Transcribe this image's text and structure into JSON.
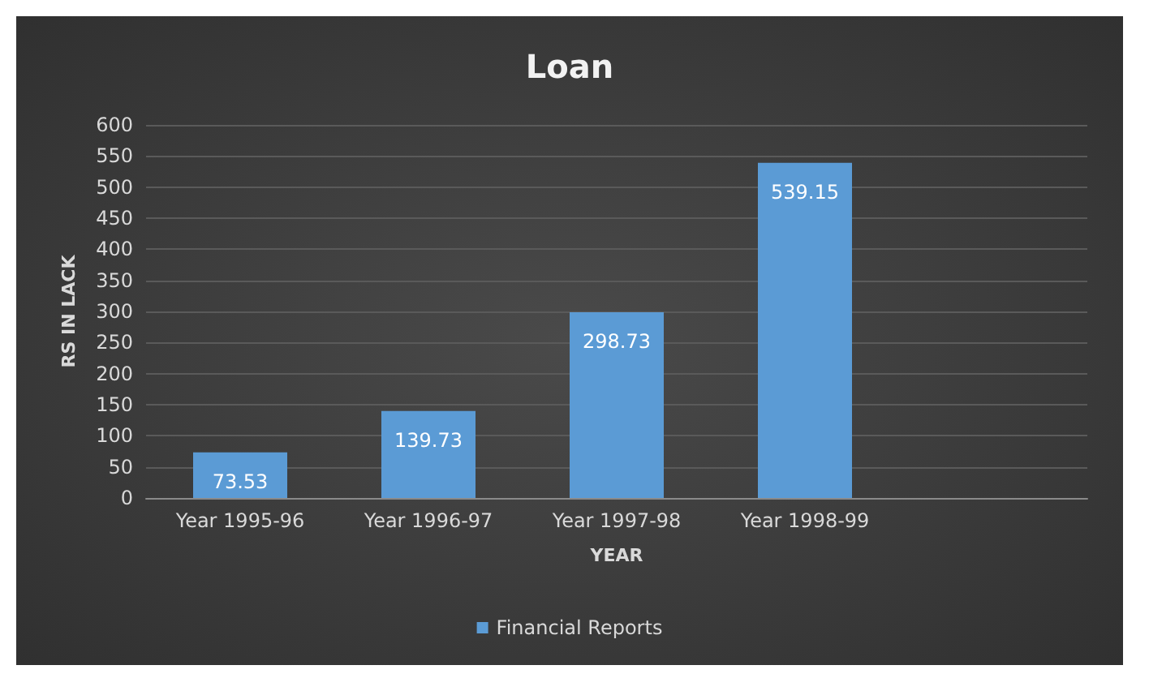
{
  "chart_data": {
    "type": "bar",
    "title": "Loan",
    "xlabel": "YEAR",
    "ylabel": "RS IN LACK",
    "categories": [
      "Year 1995-96",
      "Year 1996-97",
      "Year 1997-98",
      "Year 1998-99",
      null
    ],
    "series": [
      {
        "name": "Financial Reports",
        "color": "#5b9bd5",
        "values": [
          73.53,
          139.73,
          298.73,
          539.15,
          null
        ]
      }
    ],
    "ylim": [
      0,
      600
    ],
    "yticks": [
      0,
      50,
      100,
      150,
      200,
      250,
      300,
      350,
      400,
      450,
      500,
      550,
      600
    ],
    "grid": "y",
    "legend": "bottom",
    "data_labels": true
  }
}
